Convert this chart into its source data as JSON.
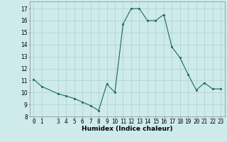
{
  "xlabel": "Humidex (Indice chaleur)",
  "x": [
    0,
    1,
    3,
    4,
    5,
    6,
    7,
    8,
    9,
    10,
    11,
    12,
    13,
    14,
    15,
    16,
    17,
    18,
    19,
    20,
    21,
    22,
    23
  ],
  "y": [
    11.1,
    10.5,
    9.9,
    9.7,
    9.5,
    9.2,
    8.9,
    8.5,
    10.7,
    10.0,
    15.7,
    17.0,
    17.0,
    16.0,
    16.0,
    16.5,
    13.8,
    12.9,
    11.5,
    10.2,
    10.8,
    10.3,
    10.3
  ],
  "line_color": "#1a6b5a",
  "marker": "s",
  "marker_size": 2,
  "bg_color": "#ceeaea",
  "grid_color": "#b0d0d0",
  "xlim": [
    -0.5,
    23.5
  ],
  "ylim": [
    8,
    17.6
  ],
  "yticks": [
    8,
    9,
    10,
    11,
    12,
    13,
    14,
    15,
    16,
    17
  ],
  "xticks": [
    0,
    1,
    3,
    4,
    5,
    6,
    7,
    8,
    9,
    10,
    11,
    12,
    13,
    14,
    15,
    16,
    17,
    18,
    19,
    20,
    21,
    22,
    23
  ],
  "tick_fontsize": 5.5,
  "xlabel_fontsize": 6.5
}
